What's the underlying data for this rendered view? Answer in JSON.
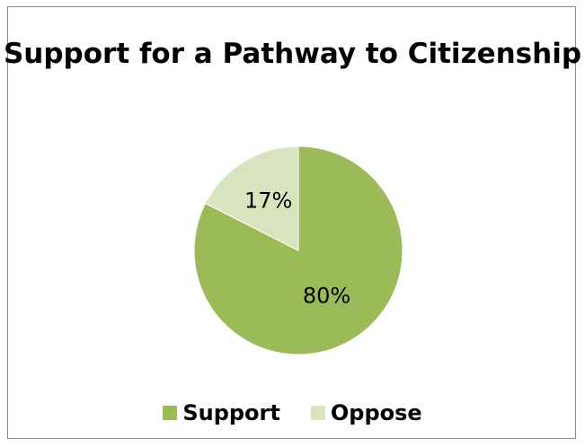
{
  "chart_data": {
    "type": "pie",
    "title": "Support for a Pathway to Citizenship",
    "slices": [
      {
        "label": "Support",
        "value": 80,
        "display": "80%",
        "color": "#9bbb59"
      },
      {
        "label": "Oppose",
        "value": 17,
        "display": "17%",
        "color": "#d7e4bd"
      }
    ],
    "legend_position": "bottom"
  }
}
